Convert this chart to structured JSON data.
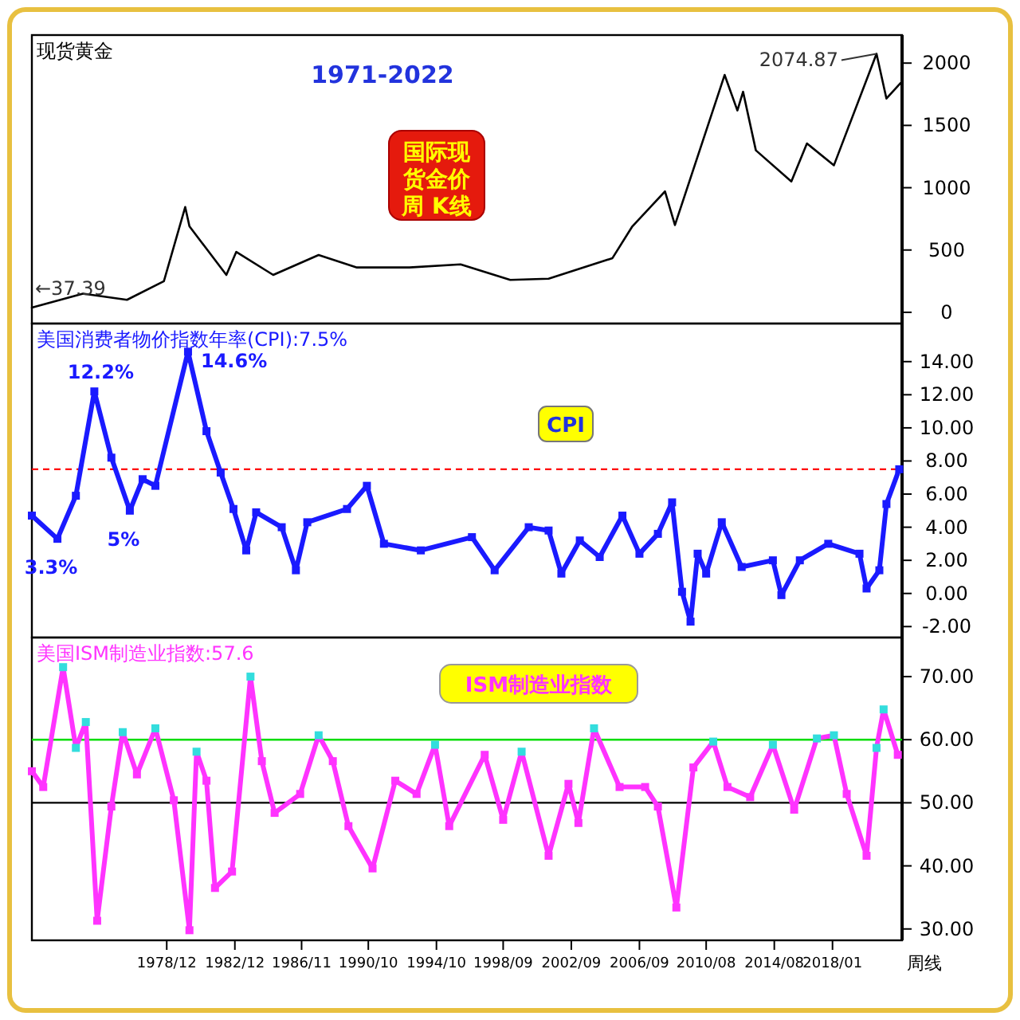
{
  "chart_data": [
    {
      "type": "line",
      "title": "现货黄金",
      "xlim": [
        "1971-01",
        "2022-02"
      ],
      "ylim": [
        -90,
        2225
      ],
      "yticks": [
        0,
        500,
        1000,
        1500,
        2000
      ],
      "tick_labels": "y",
      "marker": "none",
      "line_style": "solid",
      "series": [
        {
          "color": "#000000",
          "x": [
            "1971-01",
            "1974-01",
            "1976-08",
            "1978-10",
            "1980-01",
            "1980-04",
            "1982-06",
            "1983-01",
            "1985-03",
            "1987-11",
            "1990-02",
            "1993-03",
            "1996-03",
            "1999-02",
            "2001-05",
            "2005-02",
            "2006-04",
            "2008-03",
            "2008-10",
            "2011-09",
            "2012-06",
            "2012-10",
            "2013-07",
            "2015-08",
            "2016-07",
            "2018-02",
            "2020-08",
            "2021-03",
            "2022-01"
          ],
          "values": [
            37.39,
            150,
            100,
            250,
            845,
            690,
            300,
            485,
            300,
            460,
            360,
            360,
            385,
            260,
            270,
            435,
            690,
            970,
            700,
            1905,
            1620,
            1770,
            1300,
            1050,
            1355,
            1180,
            2074.87,
            1715,
            1840
          ]
        }
      ],
      "annotations": [
        "1971-2022",
        "国际现货金价周 K线",
        {
          "text": "←37.39",
          "x": "1971-01",
          "y": 37.39
        },
        {
          "text": "2074.87",
          "x": "2020-08",
          "y": 2074.87
        }
      ]
    },
    {
      "type": "line",
      "title": "美国消费者物价指数年率(CPI):7.5%",
      "xlim": [
        "1971-01",
        "2022-02"
      ],
      "ylim": [
        -2.66,
        16.3
      ],
      "yticks": [
        {
          "value": -2,
          "label": "-2.00"
        },
        {
          "value": 0,
          "label": "0.00"
        },
        {
          "value": 2,
          "label": "2.00"
        },
        {
          "value": 4,
          "label": "4.00"
        },
        {
          "value": 6,
          "label": "6.00"
        },
        {
          "value": 8,
          "label": "8.00"
        },
        {
          "value": 10,
          "label": "10.00"
        },
        {
          "value": 12,
          "label": "12.00"
        },
        {
          "value": 14,
          "label": "14.00"
        }
      ],
      "tick_labels": "y",
      "marker": "square",
      "line_style": "solid",
      "series": [
        {
          "color": "#1a1aff",
          "x": [
            "1971-01",
            "1972-07",
            "1973-08",
            "1974-09",
            "1975-09",
            "1976-10",
            "1977-07",
            "1978-04",
            "1980-03",
            "1981-04",
            "1982-02",
            "1982-11",
            "1983-08",
            "1984-03",
            "1985-09",
            "1986-07",
            "1987-03",
            "1989-07",
            "1990-09",
            "1991-09",
            "1993-11",
            "1996-11",
            "1998-03",
            "2000-03",
            "2001-05",
            "2002-02",
            "2003-03",
            "2004-05",
            "2005-09",
            "2006-09",
            "2007-10",
            "2008-08",
            "2009-03",
            "2009-09",
            "2010-02",
            "2010-08",
            "2011-07",
            "2012-09",
            "2014-07",
            "2015-01",
            "2016-02",
            "2017-10",
            "2019-08",
            "2020-01",
            "2020-10",
            "2021-03",
            "2021-12"
          ],
          "values": [
            4.7,
            3.3,
            5.9,
            12.2,
            8.2,
            5.0,
            6.9,
            6.5,
            14.6,
            9.8,
            7.3,
            5.1,
            2.6,
            4.9,
            4.0,
            1.4,
            4.3,
            5.1,
            6.5,
            3.0,
            2.6,
            3.4,
            1.4,
            4.0,
            3.8,
            1.2,
            3.2,
            2.2,
            4.7,
            2.4,
            3.6,
            5.5,
            0.1,
            -1.7,
            2.4,
            1.2,
            4.3,
            1.6,
            2.0,
            -0.1,
            2.0,
            3.0,
            2.4,
            0.3,
            1.4,
            5.4,
            7.5
          ]
        }
      ],
      "ref_lines": [
        {
          "axis": "y",
          "value": 7.5,
          "color": "#ff0000",
          "line_style": "dashed"
        }
      ],
      "annotations": [
        "CPI",
        {
          "text": "12.2%",
          "x": "1974-09",
          "y": 12.2
        },
        {
          "text": "14.6%",
          "x": "1980-03",
          "y": 14.6
        },
        {
          "text": "5%",
          "x": "1976-10",
          "y": 5.0
        },
        {
          "text": "3.3%",
          "x": "1972-07",
          "y": 3.3
        }
      ]
    },
    {
      "type": "line",
      "title": "美国ISM制造业指数:57.6",
      "xlim": [
        "1971-01",
        "2022-02"
      ],
      "ylim": [
        28.2,
        76.2
      ],
      "yticks": [
        {
          "value": 30,
          "label": "30.00"
        },
        {
          "value": 40,
          "label": "40.00"
        },
        {
          "value": 50,
          "label": "50.00"
        },
        {
          "value": 60,
          "label": "60.00"
        },
        {
          "value": 70,
          "label": "70.00"
        }
      ],
      "xticks": [
        {
          "value": "1978-12",
          "label": "1978/12"
        },
        {
          "value": "1982-12",
          "label": "1982/12"
        },
        {
          "value": "1986-11",
          "label": "1986/11"
        },
        {
          "value": "1990-10",
          "label": "1990/10"
        },
        {
          "value": "1994-10",
          "label": "1994/10"
        },
        {
          "value": "1998-09",
          "label": "1998/09"
        },
        {
          "value": "2002-09",
          "label": "2002/09"
        },
        {
          "value": "2006-09",
          "label": "2006/09"
        },
        {
          "value": "2010-08",
          "label": "2010/08"
        },
        {
          "value": "2014-08",
          "label": "2014/08"
        },
        {
          "value": "2018-01",
          "label": "2018/01"
        }
      ],
      "marker": "square",
      "line_style": "solid",
      "series": [
        {
          "color": "#ff33ff",
          "x": [
            "1971-01",
            "1971-09",
            "1972-11",
            "1973-08",
            "1974-03",
            "1974-11",
            "1975-09",
            "1976-05",
            "1977-03",
            "1978-04",
            "1979-05",
            "1980-04",
            "1980-09",
            "1981-04",
            "1981-10",
            "1982-10",
            "1983-11",
            "1984-07",
            "1985-04",
            "1986-10",
            "1987-11",
            "1988-09",
            "1989-08",
            "1991-01",
            "1992-05",
            "1993-08",
            "1994-09",
            "1995-07",
            "1997-08",
            "1998-09",
            "1999-10",
            "2001-05",
            "2002-07",
            "2003-02",
            "2004-01",
            "2005-07",
            "2007-01",
            "2007-10",
            "2008-11",
            "2009-11",
            "2011-01",
            "2011-11",
            "2013-03",
            "2014-07",
            "2015-10",
            "2017-02",
            "2018-02",
            "2018-11",
            "2020-01",
            "2020-08",
            "2021-01",
            "2021-11"
          ],
          "values": [
            55,
            52.5,
            71.5,
            58.7,
            62.8,
            31.3,
            49.4,
            61.2,
            54.5,
            61.8,
            50.4,
            29.8,
            58.1,
            53.5,
            36.5,
            39.1,
            70.0,
            56.6,
            48.4,
            51.4,
            60.7,
            56.6,
            46.3,
            39.6,
            53.5,
            51.4,
            59.2,
            46.3,
            57.6,
            47.3,
            58.1,
            41.6,
            53.0,
            46.8,
            61.8,
            52.5,
            52.5,
            49.4,
            33.4,
            55.6,
            59.7,
            52.5,
            50.9,
            59.2,
            48.9,
            60.2,
            60.7,
            51.4,
            41.6,
            58.7,
            64.8,
            57.6
          ],
          "colors": [
            "#ff33ff",
            "#ff33ff",
            "#33dddd",
            "#33dddd",
            "#33dddd",
            "#ff33ff",
            "#ff33ff",
            "#33dddd",
            "#ff33ff",
            "#33dddd",
            "#ff33ff",
            "#ff33ff",
            "#33dddd",
            "#ff33ff",
            "#ff33ff",
            "#ff33ff",
            "#33dddd",
            "#ff33ff",
            "#ff33ff",
            "#ff33ff",
            "#33dddd",
            "#ff33ff",
            "#ff33ff",
            "#ff33ff",
            "#ff33ff",
            "#ff33ff",
            "#33dddd",
            "#ff33ff",
            "#ff33ff",
            "#ff33ff",
            "#33dddd",
            "#ff33ff",
            "#ff33ff",
            "#ff33ff",
            "#33dddd",
            "#ff33ff",
            "#ff33ff",
            "#ff33ff",
            "#ff33ff",
            "#ff33ff",
            "#33dddd",
            "#ff33ff",
            "#ff33ff",
            "#33dddd",
            "#ff33ff",
            "#33dddd",
            "#33dddd",
            "#ff33ff",
            "#ff33ff",
            "#33dddd",
            "#33dddd",
            "#ff33ff"
          ]
        }
      ],
      "ref_lines": [
        {
          "axis": "y",
          "value": 60,
          "color": "#00dd00"
        },
        {
          "axis": "y",
          "value": 50,
          "color": "#000000"
        }
      ],
      "annotations": [
        "ISM制造业指数",
        "周线"
      ]
    }
  ]
}
